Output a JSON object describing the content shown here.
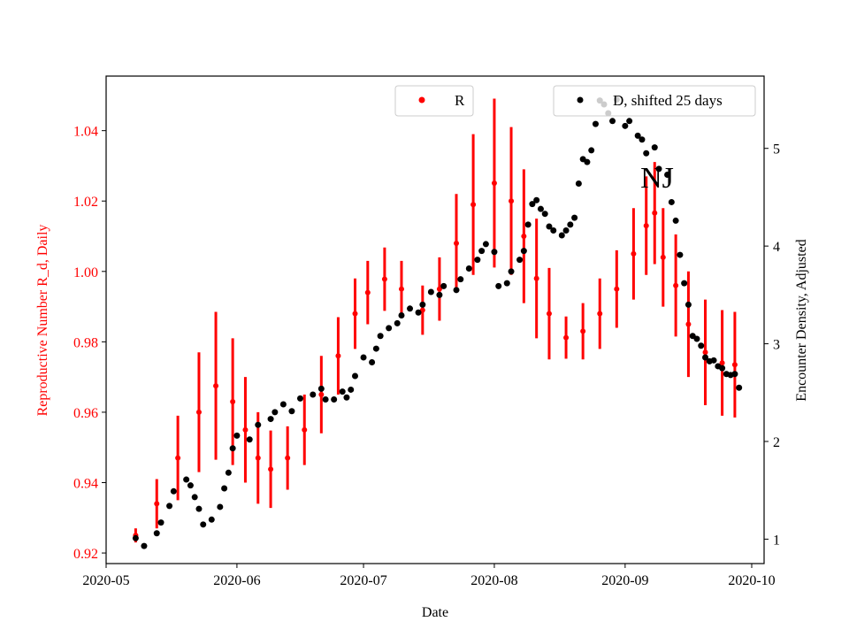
{
  "chart_data": {
    "type": "scatter",
    "title": "NJ",
    "xlabel": "Date",
    "ylabel_left": "Reproductive Number R_d, Daily",
    "ylabel_right": "Encounter Density, Adjusted",
    "xlim": [
      "2020-05-01",
      "2020-10-01"
    ],
    "ylim_left": [
      0.917,
      1.0555
    ],
    "ylim_right": [
      0.75,
      5.74
    ],
    "x_ticks": [
      "2020-05",
      "2020-06",
      "2020-07",
      "2020-08",
      "2020-09",
      "2020-10"
    ],
    "y_ticks_left": [
      "0.92",
      "0.94",
      "0.96",
      "0.98",
      "1.00",
      "1.02",
      "1.04"
    ],
    "y_ticks_right": [
      "1",
      "2",
      "3",
      "4",
      "5"
    ],
    "grid": false,
    "colors": {
      "R": "#ff0000",
      "D": "#000000",
      "left_axis": "#ff0000"
    },
    "series": [
      {
        "name": "R",
        "axis": "left",
        "legend_placement": "top-center",
        "x": [
          "2020-05-08",
          "2020-05-13",
          "2020-05-18",
          "2020-05-23",
          "2020-05-27",
          "2020-05-31",
          "2020-06-03",
          "2020-06-06",
          "2020-06-09",
          "2020-06-13",
          "2020-06-17",
          "2020-06-21",
          "2020-06-25",
          "2020-06-29",
          "2020-07-02",
          "2020-07-06",
          "2020-07-10",
          "2020-07-15",
          "2020-07-19",
          "2020-07-23",
          "2020-07-27",
          "2020-08-01",
          "2020-08-05",
          "2020-08-08",
          "2020-08-11",
          "2020-08-14",
          "2020-08-18",
          "2020-08-22",
          "2020-08-26",
          "2020-08-30",
          "2020-09-03",
          "2020-09-06",
          "2020-09-08",
          "2020-09-10",
          "2020-09-13",
          "2020-09-16",
          "2020-09-20",
          "2020-09-24",
          "2020-09-27"
        ],
        "y": [
          0.925,
          0.934,
          0.947,
          0.96,
          0.9675,
          0.963,
          0.955,
          0.947,
          0.9438,
          0.947,
          0.955,
          0.965,
          0.976,
          0.988,
          0.994,
          0.9978,
          0.995,
          0.989,
          0.995,
          1.008,
          1.019,
          1.0251,
          1.02,
          1.01,
          0.998,
          0.988,
          0.9812,
          0.983,
          0.988,
          0.995,
          1.005,
          1.013,
          1.0166,
          1.004,
          0.996,
          0.985,
          0.977,
          0.974,
          0.9735
        ],
        "yerr": [
          0.002,
          0.007,
          0.012,
          0.017,
          0.021,
          0.018,
          0.015,
          0.013,
          0.011,
          0.009,
          0.01,
          0.011,
          0.011,
          0.01,
          0.009,
          0.009,
          0.008,
          0.007,
          0.009,
          0.014,
          0.02,
          0.024,
          0.021,
          0.019,
          0.017,
          0.013,
          0.006,
          0.008,
          0.01,
          0.011,
          0.013,
          0.014,
          0.0145,
          0.014,
          0.0145,
          0.015,
          0.015,
          0.015,
          0.015
        ]
      },
      {
        "name": "D, shifted 25 days",
        "axis": "right",
        "legend_placement": "top-right",
        "x": [
          "2020-05-08",
          "2020-05-10",
          "2020-05-13",
          "2020-05-14",
          "2020-05-16",
          "2020-05-17",
          "2020-05-20",
          "2020-05-21",
          "2020-05-22",
          "2020-05-23",
          "2020-05-24",
          "2020-05-26",
          "2020-05-28",
          "2020-05-29",
          "2020-05-30",
          "2020-05-31",
          "2020-06-01",
          "2020-06-04",
          "2020-06-06",
          "2020-06-09",
          "2020-06-10",
          "2020-06-12",
          "2020-06-14",
          "2020-06-16",
          "2020-06-19",
          "2020-06-21",
          "2020-06-22",
          "2020-06-24",
          "2020-06-26",
          "2020-06-27",
          "2020-06-28",
          "2020-06-29",
          "2020-07-01",
          "2020-07-03",
          "2020-07-04",
          "2020-07-05",
          "2020-07-07",
          "2020-07-09",
          "2020-07-10",
          "2020-07-12",
          "2020-07-14",
          "2020-07-15",
          "2020-07-17",
          "2020-07-19",
          "2020-07-20",
          "2020-07-23",
          "2020-07-24",
          "2020-07-26",
          "2020-07-28",
          "2020-07-29",
          "2020-07-30",
          "2020-08-01",
          "2020-08-02",
          "2020-08-04",
          "2020-08-05",
          "2020-08-07",
          "2020-08-08",
          "2020-08-09",
          "2020-08-10",
          "2020-08-11",
          "2020-08-12",
          "2020-08-13",
          "2020-08-14",
          "2020-08-15",
          "2020-08-17",
          "2020-08-18",
          "2020-08-19",
          "2020-08-20",
          "2020-08-21",
          "2020-08-22",
          "2020-08-23",
          "2020-08-24",
          "2020-08-25",
          "2020-08-26",
          "2020-08-27",
          "2020-08-28",
          "2020-08-29",
          "2020-08-30",
          "2020-09-01",
          "2020-09-02",
          "2020-09-04",
          "2020-09-05",
          "2020-09-06",
          "2020-09-08",
          "2020-09-09",
          "2020-09-11",
          "2020-09-12",
          "2020-09-13",
          "2020-09-14",
          "2020-09-15",
          "2020-09-16",
          "2020-09-17",
          "2020-09-18",
          "2020-09-19",
          "2020-09-20",
          "2020-09-21",
          "2020-09-22",
          "2020-09-23",
          "2020-09-24",
          "2020-09-25",
          "2020-09-26",
          "2020-09-27",
          "2020-09-28"
        ],
        "y": [
          1.01,
          0.93,
          1.06,
          1.17,
          1.34,
          1.49,
          1.61,
          1.55,
          1.43,
          1.31,
          1.15,
          1.2,
          1.33,
          1.52,
          1.68,
          1.93,
          2.06,
          2.02,
          2.17,
          2.23,
          2.3,
          2.38,
          2.31,
          2.44,
          2.48,
          2.54,
          2.43,
          2.43,
          2.51,
          2.45,
          2.53,
          2.67,
          2.86,
          2.81,
          2.95,
          3.08,
          3.16,
          3.21,
          3.29,
          3.36,
          3.32,
          3.4,
          3.53,
          3.5,
          3.59,
          3.55,
          3.66,
          3.77,
          3.86,
          3.95,
          4.02,
          3.94,
          3.59,
          3.62,
          3.74,
          3.86,
          3.95,
          4.22,
          4.43,
          4.47,
          4.38,
          4.33,
          4.2,
          4.16,
          4.11,
          4.16,
          4.22,
          4.29,
          4.64,
          4.89,
          4.86,
          4.98,
          5.25,
          5.49,
          5.45,
          5.36,
          5.28,
          5.5,
          5.23,
          5.28,
          5.13,
          5.09,
          4.95,
          5.01,
          4.79,
          4.73,
          4.45,
          4.26,
          3.91,
          3.62,
          3.4,
          3.08,
          3.05,
          2.98,
          2.86,
          2.82,
          2.83,
          2.77,
          2.75,
          2.69,
          2.68,
          2.69,
          2.55
        ]
      }
    ]
  }
}
